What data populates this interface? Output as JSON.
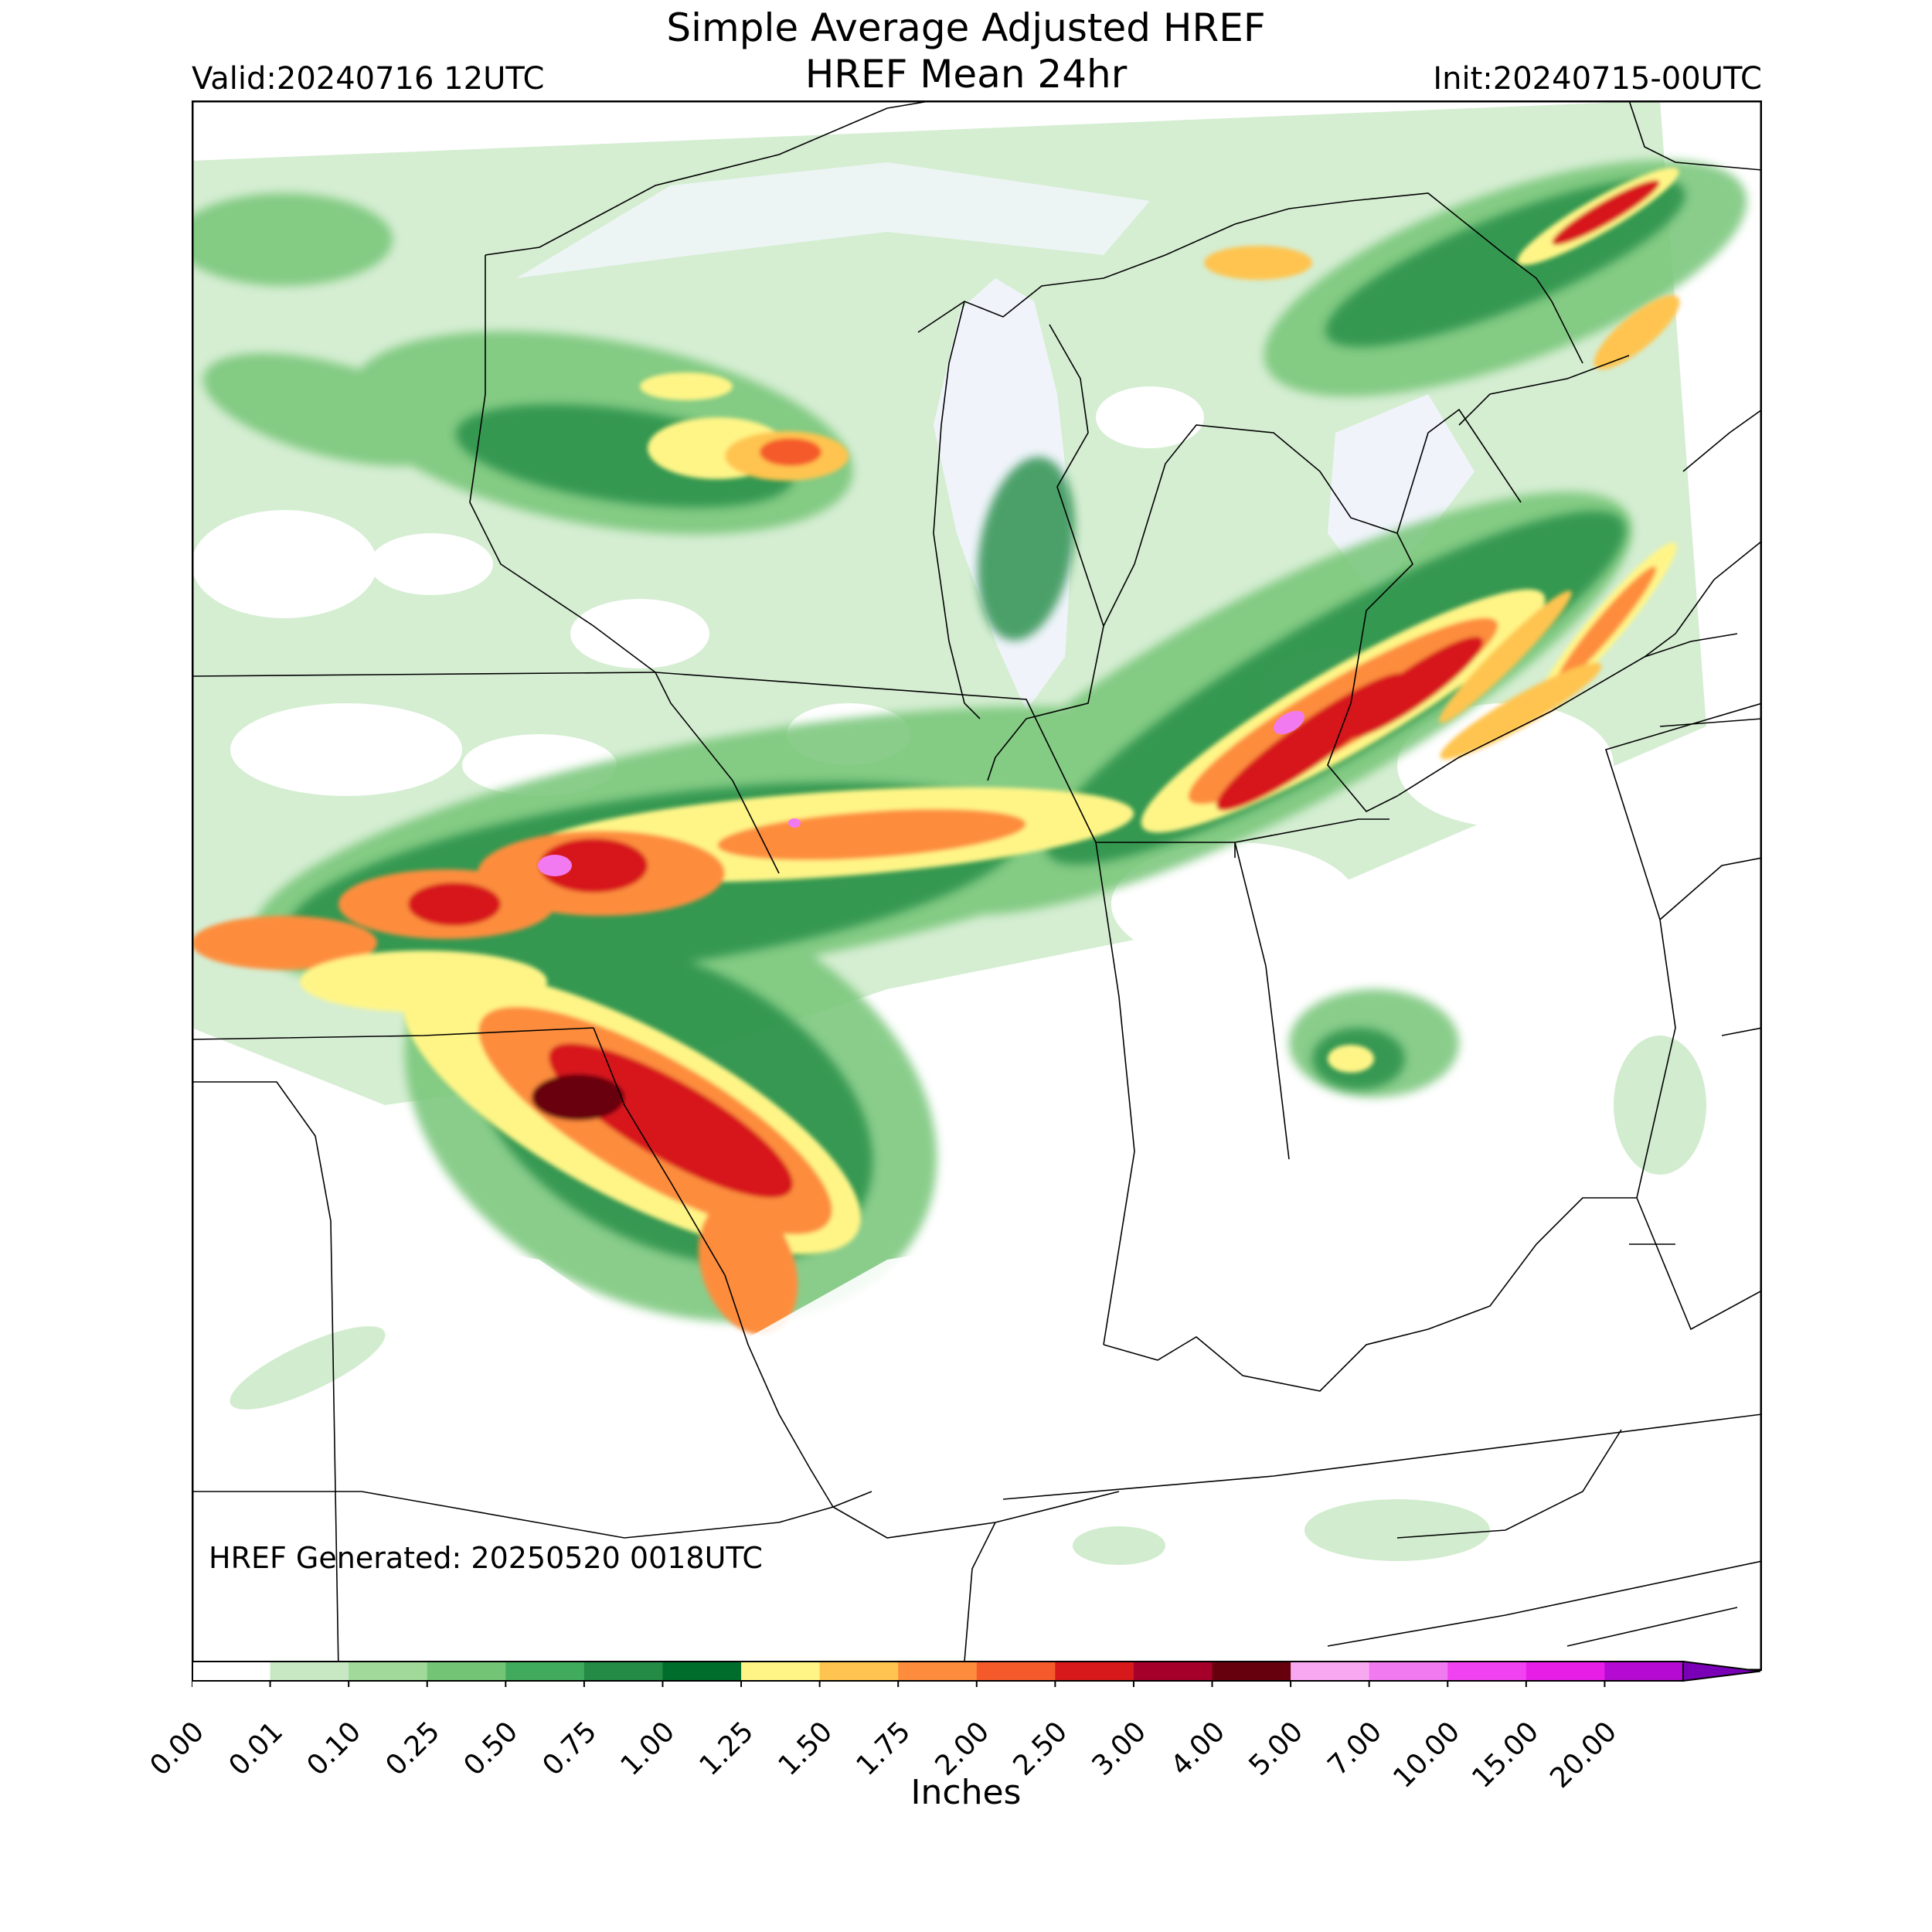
{
  "header": {
    "title_line1": "Simple Average Adjusted HREF",
    "title_line2": "HREF Mean 24hr",
    "valid": "Valid:20240716 12UTC",
    "init": "Init:20240715-00UTC"
  },
  "footer_note": "HREF Generated: 20250520 0018UTC",
  "colorbar": {
    "units": "Inches",
    "ticks": [
      "0.00",
      "0.01",
      "0.10",
      "0.25",
      "0.50",
      "0.75",
      "1.00",
      "1.25",
      "1.50",
      "1.75",
      "2.00",
      "2.50",
      "3.00",
      "4.00",
      "5.00",
      "7.00",
      "10.00",
      "15.00",
      "20.00"
    ],
    "colors": [
      "#ffffff",
      "#c7e8c3",
      "#a0d99a",
      "#74c476",
      "#41ab5d",
      "#238b45",
      "#006d2c",
      "#fff587",
      "#fec44f",
      "#fd8d3c",
      "#f55a2b",
      "#d7191c",
      "#a5002a",
      "#67000d",
      "#f7a8f0",
      "#f27af0",
      "#f042f0",
      "#e61ee6",
      "#b40ad2",
      "#7a00b8"
    ]
  },
  "map_colors": {
    "light_rain": "#c7e8c3",
    "moderate_rain": "#74c476",
    "heavy_rain": "#238b45",
    "yellow": "#fff587",
    "orange": "#fd8d3c",
    "red": "#d7191c",
    "maroon": "#67000d",
    "pink": "#f27af0",
    "water": "#f0f4fa"
  }
}
